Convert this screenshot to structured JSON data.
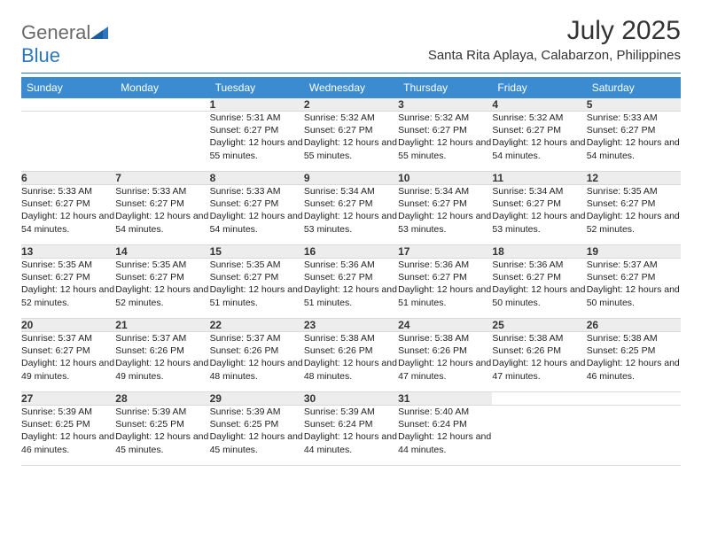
{
  "logo": {
    "text1": "General",
    "text2": "Blue"
  },
  "title": "July 2025",
  "subtitle": "Santa Rita Aplaya, Calabarzon, Philippines",
  "colors": {
    "header_bg": "#3b8bd0",
    "header_text": "#ffffff",
    "daynum_bg": "#ededed",
    "divider": "#2f77bd",
    "logo_gray": "#6a6a6a",
    "logo_blue": "#2f77bd"
  },
  "weekdays": [
    "Sunday",
    "Monday",
    "Tuesday",
    "Wednesday",
    "Thursday",
    "Friday",
    "Saturday"
  ],
  "weeks": [
    {
      "days": [
        null,
        null,
        {
          "n": "1",
          "sr": "Sunrise: 5:31 AM",
          "ss": "Sunset: 6:27 PM",
          "dl": "Daylight: 12 hours and 55 minutes."
        },
        {
          "n": "2",
          "sr": "Sunrise: 5:32 AM",
          "ss": "Sunset: 6:27 PM",
          "dl": "Daylight: 12 hours and 55 minutes."
        },
        {
          "n": "3",
          "sr": "Sunrise: 5:32 AM",
          "ss": "Sunset: 6:27 PM",
          "dl": "Daylight: 12 hours and 55 minutes."
        },
        {
          "n": "4",
          "sr": "Sunrise: 5:32 AM",
          "ss": "Sunset: 6:27 PM",
          "dl": "Daylight: 12 hours and 54 minutes."
        },
        {
          "n": "5",
          "sr": "Sunrise: 5:33 AM",
          "ss": "Sunset: 6:27 PM",
          "dl": "Daylight: 12 hours and 54 minutes."
        }
      ]
    },
    {
      "days": [
        {
          "n": "6",
          "sr": "Sunrise: 5:33 AM",
          "ss": "Sunset: 6:27 PM",
          "dl": "Daylight: 12 hours and 54 minutes."
        },
        {
          "n": "7",
          "sr": "Sunrise: 5:33 AM",
          "ss": "Sunset: 6:27 PM",
          "dl": "Daylight: 12 hours and 54 minutes."
        },
        {
          "n": "8",
          "sr": "Sunrise: 5:33 AM",
          "ss": "Sunset: 6:27 PM",
          "dl": "Daylight: 12 hours and 54 minutes."
        },
        {
          "n": "9",
          "sr": "Sunrise: 5:34 AM",
          "ss": "Sunset: 6:27 PM",
          "dl": "Daylight: 12 hours and 53 minutes."
        },
        {
          "n": "10",
          "sr": "Sunrise: 5:34 AM",
          "ss": "Sunset: 6:27 PM",
          "dl": "Daylight: 12 hours and 53 minutes."
        },
        {
          "n": "11",
          "sr": "Sunrise: 5:34 AM",
          "ss": "Sunset: 6:27 PM",
          "dl": "Daylight: 12 hours and 53 minutes."
        },
        {
          "n": "12",
          "sr": "Sunrise: 5:35 AM",
          "ss": "Sunset: 6:27 PM",
          "dl": "Daylight: 12 hours and 52 minutes."
        }
      ]
    },
    {
      "days": [
        {
          "n": "13",
          "sr": "Sunrise: 5:35 AM",
          "ss": "Sunset: 6:27 PM",
          "dl": "Daylight: 12 hours and 52 minutes."
        },
        {
          "n": "14",
          "sr": "Sunrise: 5:35 AM",
          "ss": "Sunset: 6:27 PM",
          "dl": "Daylight: 12 hours and 52 minutes."
        },
        {
          "n": "15",
          "sr": "Sunrise: 5:35 AM",
          "ss": "Sunset: 6:27 PM",
          "dl": "Daylight: 12 hours and 51 minutes."
        },
        {
          "n": "16",
          "sr": "Sunrise: 5:36 AM",
          "ss": "Sunset: 6:27 PM",
          "dl": "Daylight: 12 hours and 51 minutes."
        },
        {
          "n": "17",
          "sr": "Sunrise: 5:36 AM",
          "ss": "Sunset: 6:27 PM",
          "dl": "Daylight: 12 hours and 51 minutes."
        },
        {
          "n": "18",
          "sr": "Sunrise: 5:36 AM",
          "ss": "Sunset: 6:27 PM",
          "dl": "Daylight: 12 hours and 50 minutes."
        },
        {
          "n": "19",
          "sr": "Sunrise: 5:37 AM",
          "ss": "Sunset: 6:27 PM",
          "dl": "Daylight: 12 hours and 50 minutes."
        }
      ]
    },
    {
      "days": [
        {
          "n": "20",
          "sr": "Sunrise: 5:37 AM",
          "ss": "Sunset: 6:27 PM",
          "dl": "Daylight: 12 hours and 49 minutes."
        },
        {
          "n": "21",
          "sr": "Sunrise: 5:37 AM",
          "ss": "Sunset: 6:26 PM",
          "dl": "Daylight: 12 hours and 49 minutes."
        },
        {
          "n": "22",
          "sr": "Sunrise: 5:37 AM",
          "ss": "Sunset: 6:26 PM",
          "dl": "Daylight: 12 hours and 48 minutes."
        },
        {
          "n": "23",
          "sr": "Sunrise: 5:38 AM",
          "ss": "Sunset: 6:26 PM",
          "dl": "Daylight: 12 hours and 48 minutes."
        },
        {
          "n": "24",
          "sr": "Sunrise: 5:38 AM",
          "ss": "Sunset: 6:26 PM",
          "dl": "Daylight: 12 hours and 47 minutes."
        },
        {
          "n": "25",
          "sr": "Sunrise: 5:38 AM",
          "ss": "Sunset: 6:26 PM",
          "dl": "Daylight: 12 hours and 47 minutes."
        },
        {
          "n": "26",
          "sr": "Sunrise: 5:38 AM",
          "ss": "Sunset: 6:25 PM",
          "dl": "Daylight: 12 hours and 46 minutes."
        }
      ]
    },
    {
      "days": [
        {
          "n": "27",
          "sr": "Sunrise: 5:39 AM",
          "ss": "Sunset: 6:25 PM",
          "dl": "Daylight: 12 hours and 46 minutes."
        },
        {
          "n": "28",
          "sr": "Sunrise: 5:39 AM",
          "ss": "Sunset: 6:25 PM",
          "dl": "Daylight: 12 hours and 45 minutes."
        },
        {
          "n": "29",
          "sr": "Sunrise: 5:39 AM",
          "ss": "Sunset: 6:25 PM",
          "dl": "Daylight: 12 hours and 45 minutes."
        },
        {
          "n": "30",
          "sr": "Sunrise: 5:39 AM",
          "ss": "Sunset: 6:24 PM",
          "dl": "Daylight: 12 hours and 44 minutes."
        },
        {
          "n": "31",
          "sr": "Sunrise: 5:40 AM",
          "ss": "Sunset: 6:24 PM",
          "dl": "Daylight: 12 hours and 44 minutes."
        },
        null,
        null
      ]
    }
  ]
}
